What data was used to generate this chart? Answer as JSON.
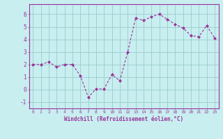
{
  "x": [
    0,
    1,
    2,
    3,
    4,
    5,
    6,
    7,
    8,
    9,
    10,
    11,
    12,
    13,
    14,
    15,
    16,
    17,
    18,
    19,
    20,
    21,
    22,
    23
  ],
  "y": [
    2.0,
    2.0,
    2.2,
    1.8,
    2.0,
    2.0,
    1.1,
    -0.6,
    0.05,
    0.05,
    1.2,
    0.7,
    3.0,
    5.7,
    5.5,
    5.8,
    6.0,
    5.6,
    5.2,
    4.9,
    4.3,
    4.2,
    5.1,
    4.1
  ],
  "line_color": "#993399",
  "marker": "D",
  "marker_size": 2.0,
  "bg_color": "#c8eef0",
  "grid_color": "#99cccc",
  "xlabel": "Windchill (Refroidissement éolien,°C)",
  "xlabel_color": "#993399",
  "tick_color": "#993399",
  "xlim": [
    -0.5,
    23.5
  ],
  "ylim": [
    -1.5,
    6.8
  ],
  "yticks": [
    -1,
    0,
    1,
    2,
    3,
    4,
    5,
    6
  ],
  "xticks": [
    0,
    1,
    2,
    3,
    4,
    5,
    6,
    7,
    8,
    9,
    10,
    11,
    12,
    13,
    14,
    15,
    16,
    17,
    18,
    19,
    20,
    21,
    22,
    23
  ],
  "spine_color": "#993399"
}
